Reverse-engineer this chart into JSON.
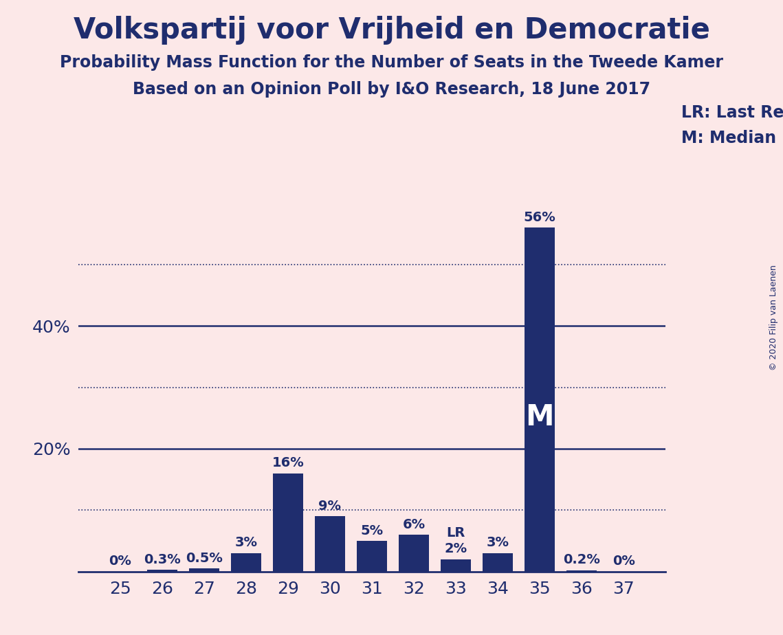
{
  "title": "Volkspartij voor Vrijheid en Democratie",
  "subtitle1": "Probability Mass Function for the Number of Seats in the Tweede Kamer",
  "subtitle2": "Based on an Opinion Poll by I&O Research, 18 June 2017",
  "copyright": "© 2020 Filip van Laenen",
  "categories": [
    25,
    26,
    27,
    28,
    29,
    30,
    31,
    32,
    33,
    34,
    35,
    36,
    37
  ],
  "values": [
    0.0,
    0.3,
    0.5,
    3.0,
    16.0,
    9.0,
    5.0,
    6.0,
    2.0,
    3.0,
    56.0,
    0.2,
    0.0
  ],
  "labels": [
    "0%",
    "0.3%",
    "0.5%",
    "3%",
    "16%",
    "9%",
    "5%",
    "6%",
    "2%",
    "3%",
    "56%",
    "0.2%",
    "0%"
  ],
  "bar_color": "#1f2d6e",
  "background_color": "#fce8e8",
  "text_color": "#1f2d6e",
  "last_result_seat": 33,
  "median_seat": 35,
  "lr_label": "LR",
  "m_label": "M",
  "legend_lr": "LR: Last Result",
  "legend_m": "M: Median",
  "ylim": [
    0,
    60
  ],
  "solid_yticks": [
    20,
    40
  ],
  "dotted_yticks": [
    10,
    30,
    50
  ],
  "title_fontsize": 30,
  "subtitle_fontsize": 17,
  "label_fontsize": 14,
  "tick_fontsize": 18,
  "legend_fontsize": 17,
  "m_fontsize": 30,
  "copyright_fontsize": 9
}
